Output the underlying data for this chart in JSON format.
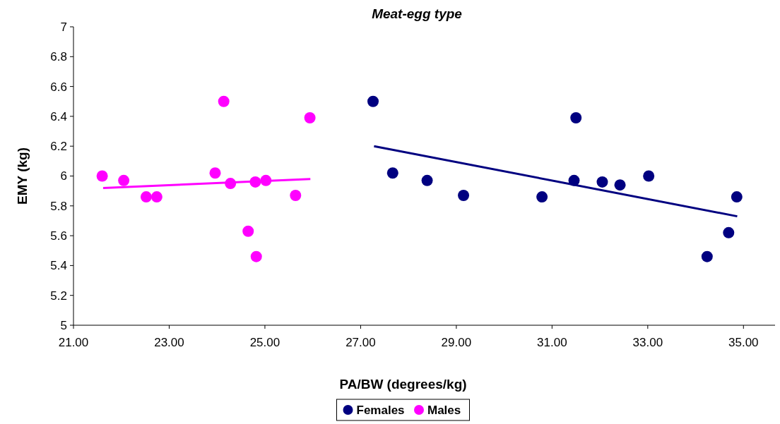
{
  "chart_data": {
    "type": "scatter",
    "title": "Meat-egg type",
    "xlabel": "PA/BW (degrees/kg)",
    "ylabel": "EMY (kg)",
    "xlim": [
      21,
      35.66
    ],
    "xticks": [
      {
        "value": 21,
        "label": "21.00"
      },
      {
        "value": 23,
        "label": "23.00"
      },
      {
        "value": 25,
        "label": "25.00"
      },
      {
        "value": 27,
        "label": "27.00"
      },
      {
        "value": 29,
        "label": "29.00"
      },
      {
        "value": 31,
        "label": "31.00"
      },
      {
        "value": 33,
        "label": "33.00"
      },
      {
        "value": 35,
        "label": "35.00"
      }
    ],
    "ylim": [
      5,
      7
    ],
    "yticks": [
      5,
      5.2,
      5.4,
      5.6,
      5.8,
      6,
      6.2,
      6.4,
      6.6,
      6.8,
      7
    ],
    "grid": false,
    "legend": "bottom",
    "marker": "circle",
    "series": [
      {
        "name": "Females",
        "color": "#000080",
        "x": [
          27.26,
          27.67,
          28.39,
          29.15,
          30.79,
          31.46,
          31.5,
          32.05,
          32.42,
          33.02,
          34.24,
          34.69,
          34.86
        ],
        "values": [
          6.5,
          6.02,
          5.97,
          5.87,
          5.86,
          5.97,
          6.39,
          5.96,
          5.94,
          6.0,
          5.46,
          5.62,
          5.86
        ]
      },
      {
        "name": "Males",
        "color": "#ff00ff",
        "x": [
          21.6,
          22.05,
          22.52,
          22.74,
          23.96,
          24.14,
          24.28,
          24.65,
          24.82,
          24.8,
          25.02,
          25.64,
          25.94
        ],
        "values": [
          6.0,
          5.97,
          5.86,
          5.86,
          6.02,
          6.5,
          5.95,
          5.63,
          5.46,
          5.96,
          5.97,
          5.87,
          6.39
        ]
      },
      {
        "type": "line",
        "marker": "none",
        "color": "#000080",
        "x": [
          27.28,
          34.87
        ],
        "values": [
          6.2,
          5.73
        ]
      },
      {
        "type": "line",
        "marker": "none",
        "color": "#ff00ff",
        "x": [
          21.62,
          25.95
        ],
        "values": [
          5.92,
          5.98
        ]
      }
    ]
  }
}
